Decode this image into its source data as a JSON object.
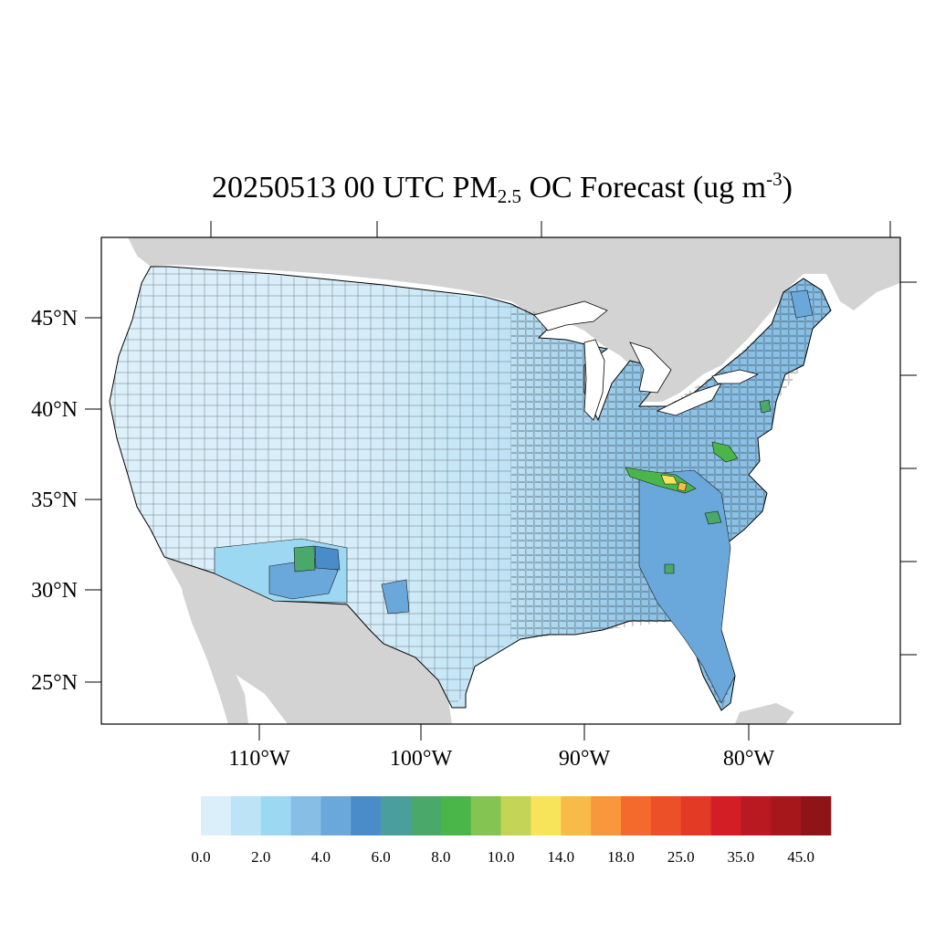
{
  "title": {
    "prefix": "20250513 00 UTC PM",
    "subscript": "2.5",
    "middle": " OC Forecast (ug m",
    "superscript": "-3",
    "suffix": ")"
  },
  "map": {
    "region": "Contiguous United States",
    "projection": "Lambert conformal",
    "land_color": "#d3d3d3",
    "water_color": "#ffffff",
    "boundary_color": "#000000",
    "lat_labels": [
      "45°N",
      "40°N",
      "35°N",
      "30°N",
      "25°N"
    ],
    "lat_values": [
      45,
      40,
      35,
      30,
      25
    ],
    "lon_labels": [
      "110°W",
      "100°W",
      "90°W",
      "80°W"
    ],
    "lon_values": [
      -110,
      -100,
      -90,
      -80
    ],
    "hotspots": [
      {
        "area": "Eastern Tennessee",
        "level": "10.0-18.0"
      },
      {
        "area": "Southwest Virginia",
        "level": "8.0-10.0"
      },
      {
        "area": "Southern New Mexico",
        "level": "6.0-8.0"
      },
      {
        "area": "Western North Carolina",
        "level": "6.0-8.0"
      },
      {
        "area": "Southwest Kentucky",
        "level": "6.0-8.0"
      }
    ]
  },
  "colorbar": {
    "labels": [
      "0.0",
      "2.0",
      "4.0",
      "6.0",
      "8.0",
      "10.0",
      "14.0",
      "18.0",
      "25.0",
      "35.0",
      "45.0"
    ],
    "colors": [
      "#dbeffa",
      "#bce4f6",
      "#9dd8f3",
      "#86bee6",
      "#6aa8db",
      "#4a8bc9",
      "#4a9e9e",
      "#4aa86a",
      "#4ab649",
      "#84c450",
      "#c3d457",
      "#f8e45a",
      "#f8bb48",
      "#f8973c",
      "#f46a2c",
      "#ec5028",
      "#e33a26",
      "#d41e26",
      "#b91a21",
      "#a6171c",
      "#8e1418"
    ]
  }
}
